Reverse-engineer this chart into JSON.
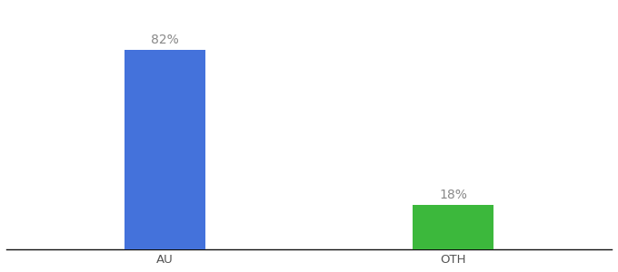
{
  "categories": [
    "AU",
    "OTH"
  ],
  "values": [
    82,
    18
  ],
  "bar_colors": [
    "#4472db",
    "#3cb83c"
  ],
  "label_texts": [
    "82%",
    "18%"
  ],
  "background_color": "#ffffff",
  "axis_line_color": "#111111",
  "label_fontsize": 10,
  "tick_fontsize": 9.5,
  "ylim": [
    0,
    100
  ],
  "bar_width": 0.28,
  "label_color": "#888888",
  "tick_color": "#555555"
}
